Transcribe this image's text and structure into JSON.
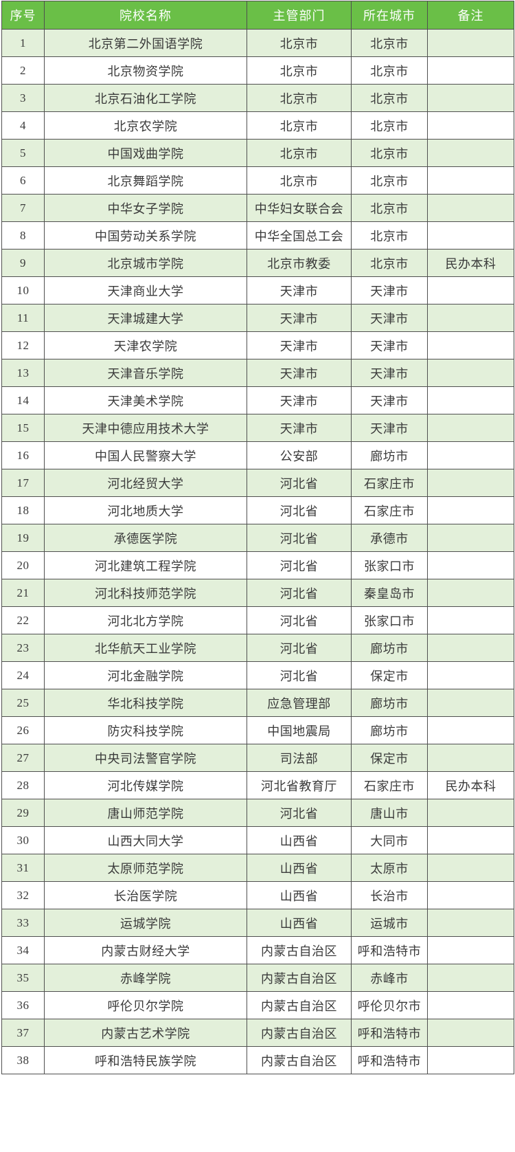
{
  "colors": {
    "header_bg": "#6abf47",
    "alt_row_bg": "#e3f0da",
    "border": "#4f4f4f",
    "header_text": "#ffffff",
    "body_text": "#3a3a3a"
  },
  "table": {
    "headers": [
      "序号",
      "院校名称",
      "主管部门",
      "所在城市",
      "备注"
    ],
    "rows": [
      [
        "1",
        "北京第二外国语学院",
        "北京市",
        "北京市",
        ""
      ],
      [
        "2",
        "北京物资学院",
        "北京市",
        "北京市",
        ""
      ],
      [
        "3",
        "北京石油化工学院",
        "北京市",
        "北京市",
        ""
      ],
      [
        "4",
        "北京农学院",
        "北京市",
        "北京市",
        ""
      ],
      [
        "5",
        "中国戏曲学院",
        "北京市",
        "北京市",
        ""
      ],
      [
        "6",
        "北京舞蹈学院",
        "北京市",
        "北京市",
        ""
      ],
      [
        "7",
        "中华女子学院",
        "中华妇女联合会",
        "北京市",
        ""
      ],
      [
        "8",
        "中国劳动关系学院",
        "中华全国总工会",
        "北京市",
        ""
      ],
      [
        "9",
        "北京城市学院",
        "北京市教委",
        "北京市",
        "民办本科"
      ],
      [
        "10",
        "天津商业大学",
        "天津市",
        "天津市",
        ""
      ],
      [
        "11",
        "天津城建大学",
        "天津市",
        "天津市",
        ""
      ],
      [
        "12",
        "天津农学院",
        "天津市",
        "天津市",
        ""
      ],
      [
        "13",
        "天津音乐学院",
        "天津市",
        "天津市",
        ""
      ],
      [
        "14",
        "天津美术学院",
        "天津市",
        "天津市",
        ""
      ],
      [
        "15",
        "天津中德应用技术大学",
        "天津市",
        "天津市",
        ""
      ],
      [
        "16",
        "中国人民警察大学",
        "公安部",
        "廊坊市",
        ""
      ],
      [
        "17",
        "河北经贸大学",
        "河北省",
        "石家庄市",
        ""
      ],
      [
        "18",
        "河北地质大学",
        "河北省",
        "石家庄市",
        ""
      ],
      [
        "19",
        "承德医学院",
        "河北省",
        "承德市",
        ""
      ],
      [
        "20",
        "河北建筑工程学院",
        "河北省",
        "张家口市",
        ""
      ],
      [
        "21",
        "河北科技师范学院",
        "河北省",
        "秦皇岛市",
        ""
      ],
      [
        "22",
        "河北北方学院",
        "河北省",
        "张家口市",
        ""
      ],
      [
        "23",
        "北华航天工业学院",
        "河北省",
        "廊坊市",
        ""
      ],
      [
        "24",
        "河北金融学院",
        "河北省",
        "保定市",
        ""
      ],
      [
        "25",
        "华北科技学院",
        "应急管理部",
        "廊坊市",
        ""
      ],
      [
        "26",
        "防灾科技学院",
        "中国地震局",
        "廊坊市",
        ""
      ],
      [
        "27",
        "中央司法警官学院",
        "司法部",
        "保定市",
        ""
      ],
      [
        "28",
        "河北传媒学院",
        "河北省教育厅",
        "石家庄市",
        "民办本科"
      ],
      [
        "29",
        "唐山师范学院",
        "河北省",
        "唐山市",
        ""
      ],
      [
        "30",
        "山西大同大学",
        "山西省",
        "大同市",
        ""
      ],
      [
        "31",
        "太原师范学院",
        "山西省",
        "太原市",
        ""
      ],
      [
        "32",
        "长治医学院",
        "山西省",
        "长治市",
        ""
      ],
      [
        "33",
        "运城学院",
        "山西省",
        "运城市",
        ""
      ],
      [
        "34",
        "内蒙古财经大学",
        "内蒙古自治区",
        "呼和浩特市",
        ""
      ],
      [
        "35",
        "赤峰学院",
        "内蒙古自治区",
        "赤峰市",
        ""
      ],
      [
        "36",
        "呼伦贝尔学院",
        "内蒙古自治区",
        "呼伦贝尔市",
        ""
      ],
      [
        "37",
        "内蒙古艺术学院",
        "内蒙古自治区",
        "呼和浩特市",
        ""
      ],
      [
        "38",
        "呼和浩特民族学院",
        "内蒙古自治区",
        "呼和浩特市",
        ""
      ]
    ]
  }
}
